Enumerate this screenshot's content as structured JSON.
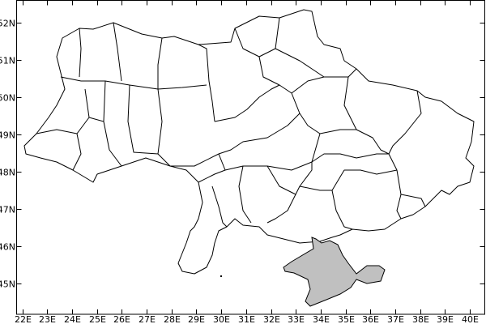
{
  "map": {
    "region_fill": "#c0c0c0",
    "land_fill": "#ffffff",
    "border_color": "#000000",
    "x_ticks": [
      "22E",
      "23E",
      "24E",
      "25E",
      "26E",
      "27E",
      "28E",
      "29E",
      "30E",
      "31E",
      "32E",
      "33E",
      "34E",
      "35E",
      "36E",
      "37E",
      "38E",
      "39E",
      "40E"
    ],
    "y_ticks": [
      "45N",
      "46N",
      "47N",
      "48N",
      "49N",
      "50N",
      "51N",
      "52N"
    ],
    "x_range": [
      21.77,
      40.6
    ],
    "y_range": [
      44.18,
      52.6
    ]
  }
}
